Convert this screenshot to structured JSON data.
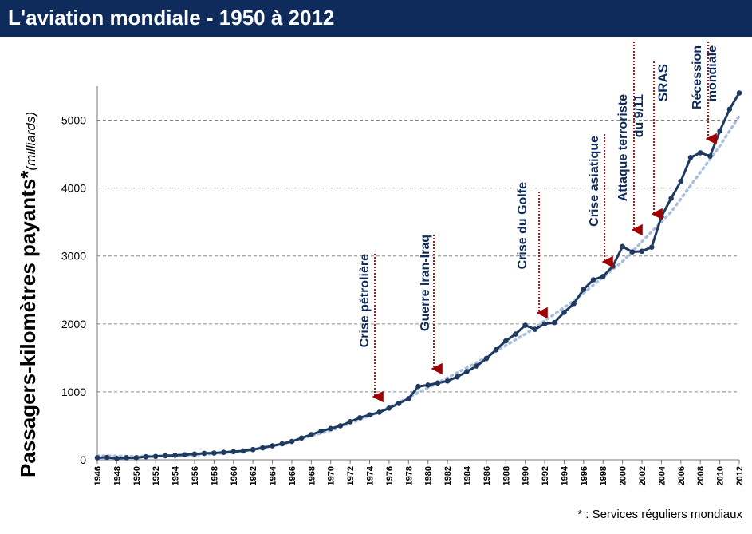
{
  "header": {
    "title": "L'aviation mondiale - 1950 à 2012"
  },
  "footnote": "* : Services réguliers mondiaux",
  "colors": {
    "title_bg": "#0f2b5b",
    "line": "#1f3a60",
    "trend": "#a9bedc",
    "annotation_arrow": "#a00000",
    "annotation_text": "#0f2b5b"
  },
  "chart_data": {
    "type": "line",
    "title": "",
    "ylabel": "Passagers-kilomètres payants*",
    "ylabel_unit": "(milliards)",
    "xlabel": "",
    "ylim": [
      0,
      5500
    ],
    "xlim": [
      1946,
      2012
    ],
    "yticks": [
      0,
      1000,
      2000,
      3000,
      4000,
      5000
    ],
    "xticks": [
      1946,
      1948,
      1950,
      1952,
      1954,
      1956,
      1958,
      1960,
      1962,
      1964,
      1966,
      1968,
      1970,
      1972,
      1974,
      1976,
      1978,
      1980,
      1982,
      1984,
      1986,
      1988,
      1990,
      1992,
      1994,
      1996,
      1998,
      2000,
      2002,
      2004,
      2006,
      2008,
      2010,
      2012
    ],
    "grid": "horizontal dashed",
    "series": [
      {
        "x": [
          1946,
          1947,
          1948,
          1949,
          1950,
          1951,
          1952,
          1953,
          1954,
          1955,
          1956,
          1957,
          1958,
          1959,
          1960,
          1961,
          1962,
          1963,
          1964,
          1965,
          1966,
          1967,
          1968,
          1969,
          1970,
          1971,
          1972,
          1973,
          1974,
          1975,
          1976,
          1977,
          1978,
          1979,
          1980,
          1981,
          1982,
          1983,
          1984,
          1985,
          1986,
          1987,
          1988,
          1989,
          1990,
          1991,
          1992,
          1993,
          1994,
          1995,
          1996,
          1997,
          1998,
          1999,
          2000,
          2001,
          2002,
          2003,
          2004,
          2005,
          2006,
          2007,
          2008,
          2009,
          2010,
          2011,
          2012
        ],
        "y": [
          30,
          35,
          20,
          30,
          30,
          45,
          50,
          60,
          65,
          75,
          85,
          95,
          100,
          110,
          120,
          130,
          150,
          175,
          205,
          235,
          270,
          320,
          370,
          420,
          460,
          500,
          560,
          620,
          660,
          700,
          760,
          830,
          900,
          1080,
          1100,
          1130,
          1160,
          1220,
          1300,
          1380,
          1490,
          1620,
          1750,
          1850,
          1980,
          1920,
          2000,
          2020,
          2170,
          2300,
          2510,
          2650,
          2700,
          2850,
          3140,
          3060,
          3070,
          3130,
          3580,
          3850,
          4100,
          4450,
          4520,
          4470,
          4840,
          5160,
          5400
        ]
      },
      {
        "style": "trend",
        "x": [
          1946,
          1950,
          1955,
          1960,
          1965,
          1970,
          1975,
          1980,
          1985,
          1990,
          1995,
          2000,
          2005,
          2010,
          2012
        ],
        "y": [
          60,
          50,
          60,
          110,
          230,
          430,
          700,
          1060,
          1430,
          1850,
          2340,
          2920,
          3650,
          4620,
          5060
        ]
      }
    ],
    "annotations": [
      {
        "label": "Crise pétrolière",
        "x": 1974
      },
      {
        "label": "Guerre Iran-Iraq",
        "x": 1980
      },
      {
        "label": "Crise du Golfe",
        "x": 1991
      },
      {
        "label": "Crise asiatique",
        "x": 1998
      },
      {
        "label": "Attaque terroriste du 9/11",
        "x": 2001
      },
      {
        "label": "SRAS",
        "x": 2003
      },
      {
        "label": "Récession mondiale",
        "x": 2008
      }
    ]
  }
}
